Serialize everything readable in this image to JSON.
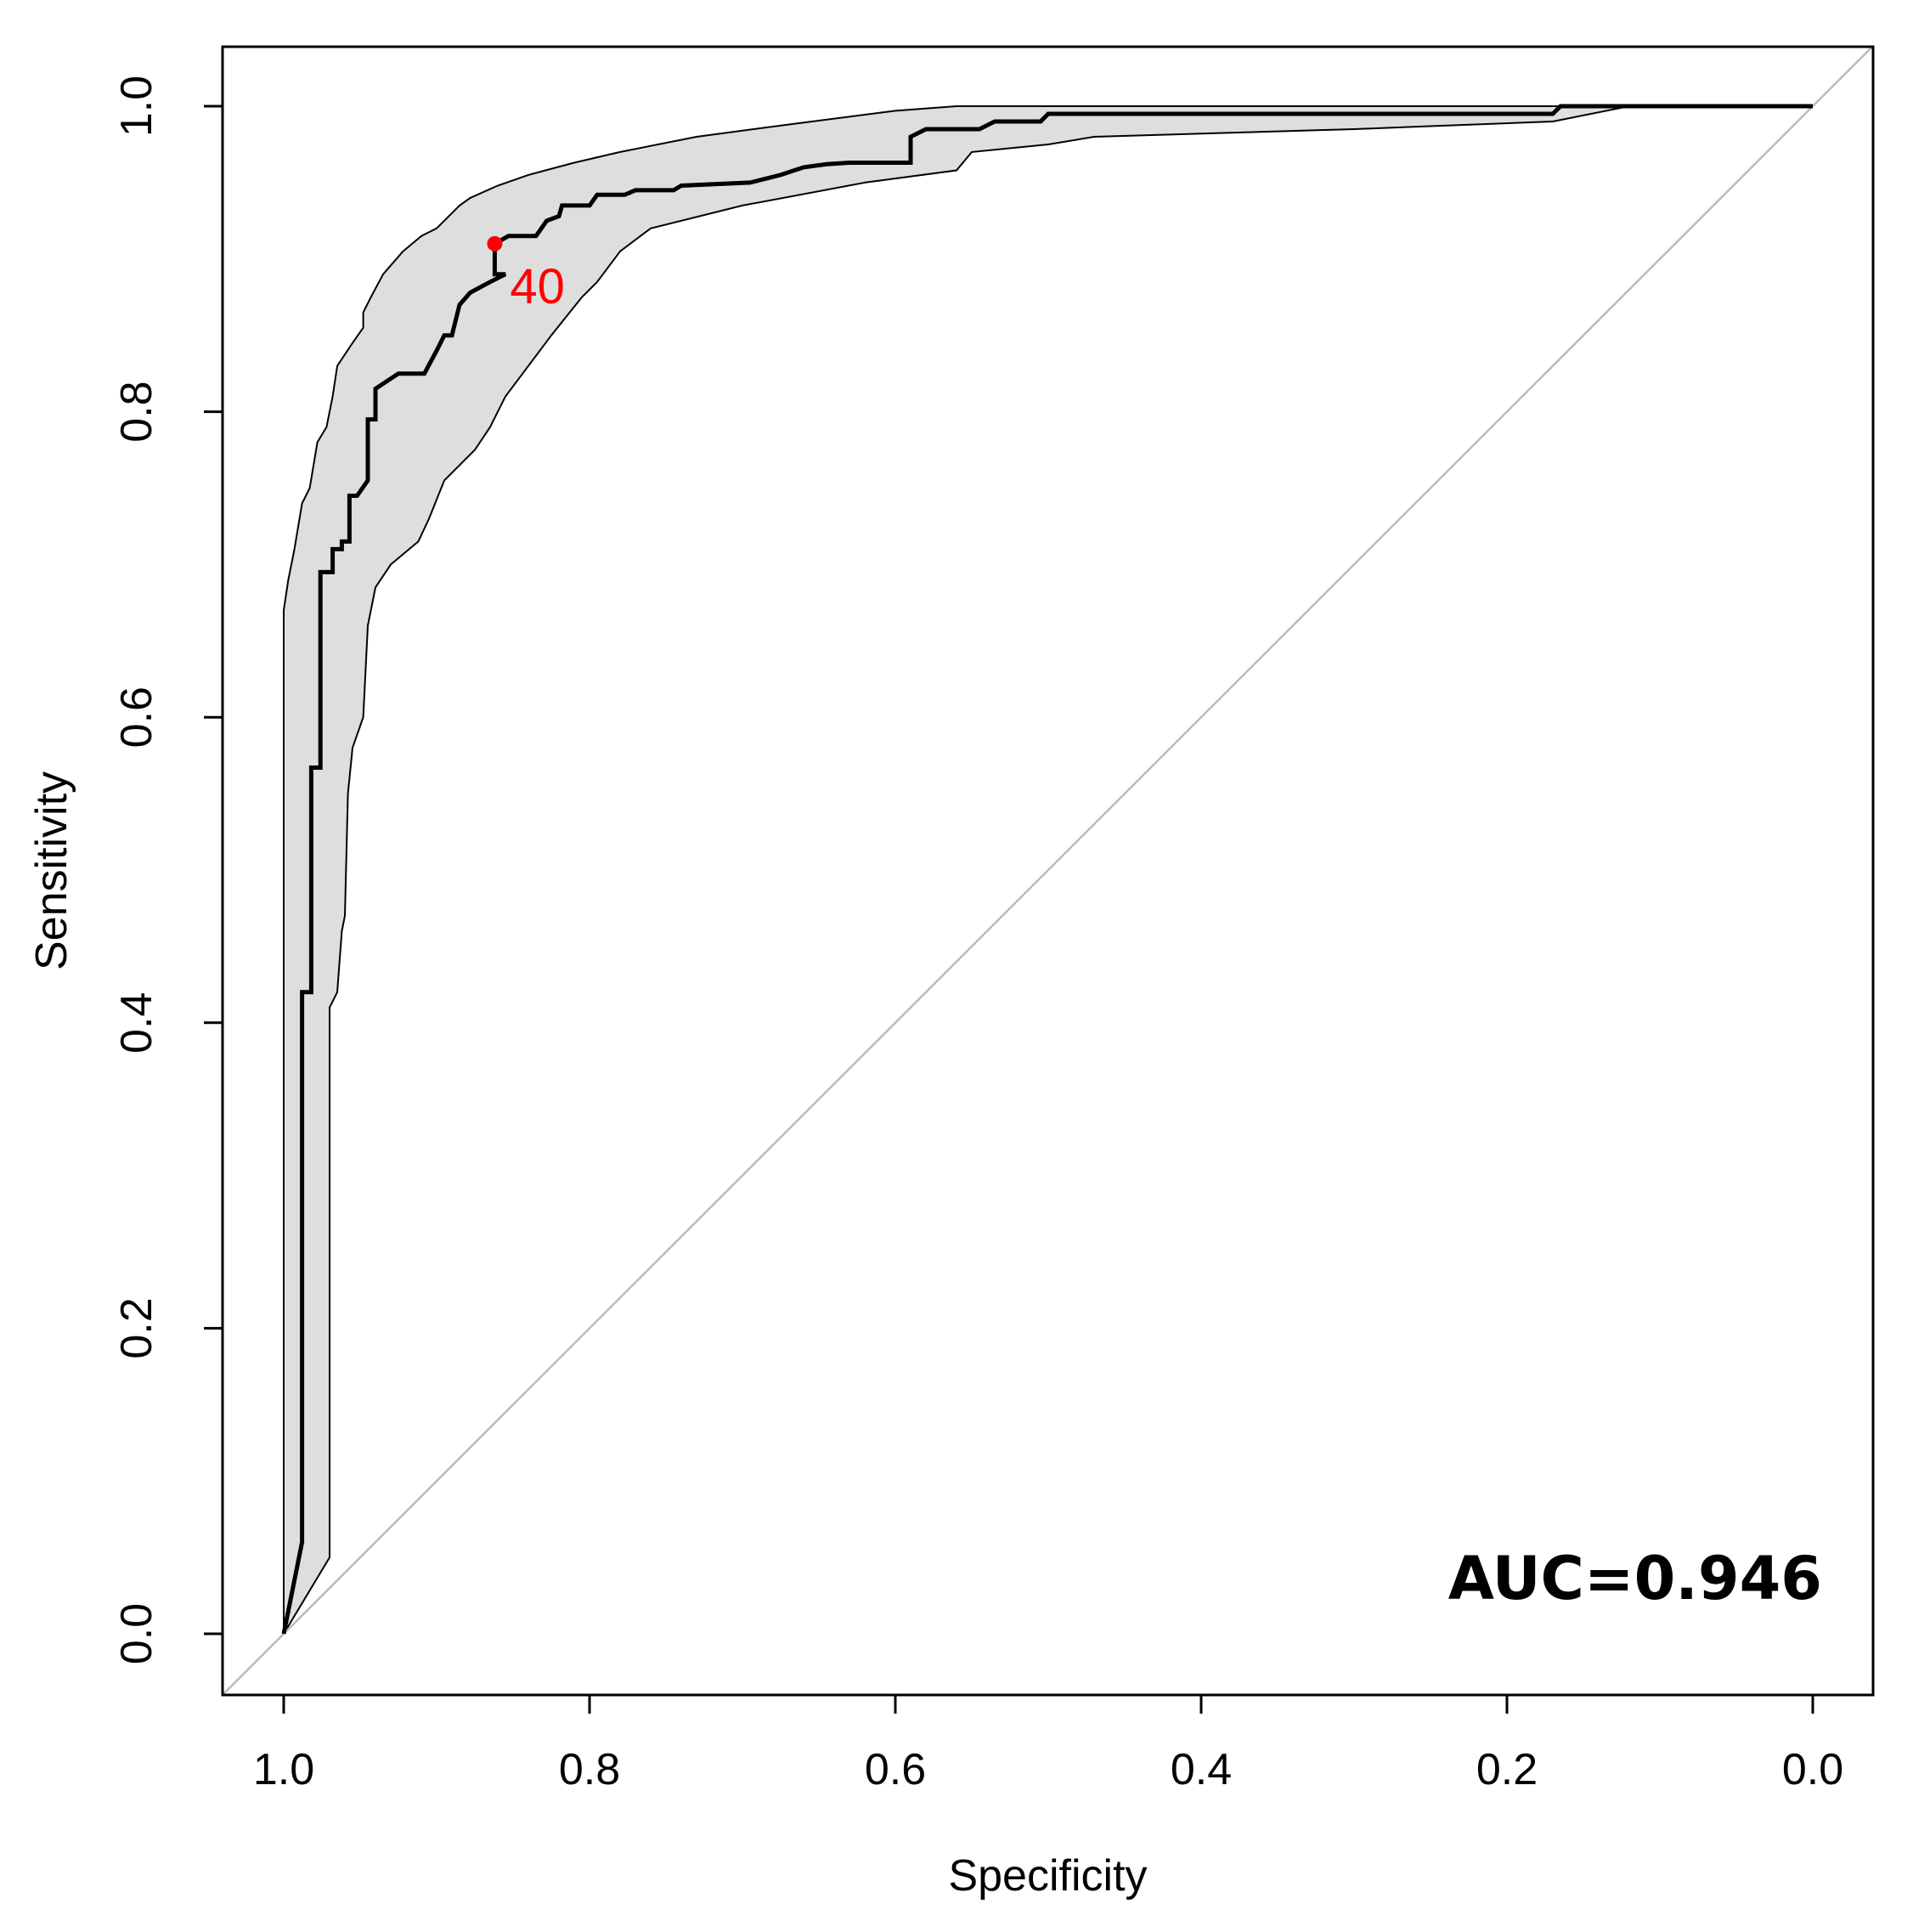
{
  "chart_data": {
    "type": "line",
    "xlabel": "Specificity",
    "ylabel": "Sensitivity",
    "xlim": [
      1.0,
      0.0
    ],
    "ylim": [
      0.0,
      1.0
    ],
    "x_reversed": true,
    "x_ticks": [
      1.0,
      0.8,
      0.6,
      0.4,
      0.2,
      0.0
    ],
    "x_tick_labels": [
      "1.0",
      "0.8",
      "0.6",
      "0.4",
      "0.2",
      "0.0"
    ],
    "y_ticks": [
      0.0,
      0.2,
      0.4,
      0.6,
      0.8,
      1.0
    ],
    "y_tick_labels": [
      "0.0",
      "0.2",
      "0.4",
      "0.6",
      "0.8",
      "1.0"
    ],
    "grid": false,
    "annotation": "AUC=0.946",
    "threshold_point": {
      "specificity": 0.862,
      "sensitivity": 0.91,
      "label": "40",
      "color": "#ff0000"
    },
    "diagonal_reference": {
      "from": [
        1.0,
        0.0
      ],
      "to": [
        0.0,
        1.0
      ],
      "color": "#bbbbbb"
    },
    "roc_curve": [
      [
        1.0,
        0.0
      ],
      [
        0.988,
        0.06
      ],
      [
        0.988,
        0.42
      ],
      [
        0.982,
        0.42
      ],
      [
        0.982,
        0.567
      ],
      [
        0.976,
        0.567
      ],
      [
        0.976,
        0.695
      ],
      [
        0.968,
        0.695
      ],
      [
        0.968,
        0.71
      ],
      [
        0.962,
        0.71
      ],
      [
        0.962,
        0.715
      ],
      [
        0.957,
        0.715
      ],
      [
        0.957,
        0.745
      ],
      [
        0.952,
        0.745
      ],
      [
        0.945,
        0.755
      ],
      [
        0.945,
        0.795
      ],
      [
        0.94,
        0.795
      ],
      [
        0.94,
        0.815
      ],
      [
        0.925,
        0.825
      ],
      [
        0.908,
        0.825
      ],
      [
        0.9,
        0.84
      ],
      [
        0.895,
        0.85
      ],
      [
        0.89,
        0.85
      ],
      [
        0.885,
        0.87
      ],
      [
        0.878,
        0.878
      ],
      [
        0.865,
        0.885
      ],
      [
        0.855,
        0.89
      ],
      [
        0.862,
        0.89
      ],
      [
        0.862,
        0.91
      ],
      [
        0.853,
        0.915
      ],
      [
        0.835,
        0.915
      ],
      [
        0.828,
        0.925
      ],
      [
        0.82,
        0.928
      ],
      [
        0.818,
        0.935
      ],
      [
        0.8,
        0.935
      ],
      [
        0.795,
        0.942
      ],
      [
        0.777,
        0.942
      ],
      [
        0.77,
        0.945
      ],
      [
        0.745,
        0.945
      ],
      [
        0.74,
        0.948
      ],
      [
        0.695,
        0.95
      ],
      [
        0.675,
        0.955
      ],
      [
        0.66,
        0.96
      ],
      [
        0.645,
        0.962
      ],
      [
        0.63,
        0.963
      ],
      [
        0.59,
        0.963
      ],
      [
        0.59,
        0.98
      ],
      [
        0.58,
        0.985
      ],
      [
        0.545,
        0.985
      ],
      [
        0.535,
        0.99
      ],
      [
        0.505,
        0.99
      ],
      [
        0.5,
        0.995
      ],
      [
        0.17,
        0.995
      ],
      [
        0.165,
        1.0
      ],
      [
        0.0,
        1.0
      ]
    ],
    "ci_upper": [
      [
        1.0,
        0.0
      ],
      [
        1.0,
        0.67
      ],
      [
        0.997,
        0.69
      ],
      [
        0.993,
        0.71
      ],
      [
        0.988,
        0.74
      ],
      [
        0.983,
        0.75
      ],
      [
        0.978,
        0.78
      ],
      [
        0.972,
        0.79
      ],
      [
        0.968,
        0.81
      ],
      [
        0.965,
        0.83
      ],
      [
        0.955,
        0.845
      ],
      [
        0.948,
        0.855
      ],
      [
        0.948,
        0.865
      ],
      [
        0.943,
        0.875
      ],
      [
        0.935,
        0.89
      ],
      [
        0.922,
        0.905
      ],
      [
        0.91,
        0.915
      ],
      [
        0.9,
        0.92
      ],
      [
        0.885,
        0.935
      ],
      [
        0.878,
        0.94
      ],
      [
        0.86,
        0.948
      ],
      [
        0.84,
        0.955
      ],
      [
        0.81,
        0.963
      ],
      [
        0.78,
        0.97
      ],
      [
        0.73,
        0.98
      ],
      [
        0.67,
        0.988
      ],
      [
        0.6,
        0.997
      ],
      [
        0.56,
        1.0
      ],
      [
        0.0,
        1.0
      ]
    ],
    "ci_lower": [
      [
        1.0,
        0.0
      ],
      [
        0.97,
        0.05
      ],
      [
        0.97,
        0.41
      ],
      [
        0.965,
        0.42
      ],
      [
        0.962,
        0.46
      ],
      [
        0.96,
        0.47
      ],
      [
        0.958,
        0.55
      ],
      [
        0.955,
        0.58
      ],
      [
        0.948,
        0.6
      ],
      [
        0.945,
        0.66
      ],
      [
        0.94,
        0.685
      ],
      [
        0.93,
        0.7
      ],
      [
        0.912,
        0.715
      ],
      [
        0.905,
        0.73
      ],
      [
        0.895,
        0.755
      ],
      [
        0.875,
        0.775
      ],
      [
        0.865,
        0.79
      ],
      [
        0.855,
        0.81
      ],
      [
        0.84,
        0.83
      ],
      [
        0.825,
        0.85
      ],
      [
        0.805,
        0.875
      ],
      [
        0.795,
        0.885
      ],
      [
        0.78,
        0.905
      ],
      [
        0.76,
        0.92
      ],
      [
        0.7,
        0.935
      ],
      [
        0.62,
        0.95
      ],
      [
        0.56,
        0.958
      ],
      [
        0.55,
        0.97
      ],
      [
        0.5,
        0.975
      ],
      [
        0.47,
        0.98
      ],
      [
        0.3,
        0.985
      ],
      [
        0.17,
        0.99
      ],
      [
        0.12,
        1.0
      ],
      [
        0.0,
        1.0
      ]
    ]
  }
}
